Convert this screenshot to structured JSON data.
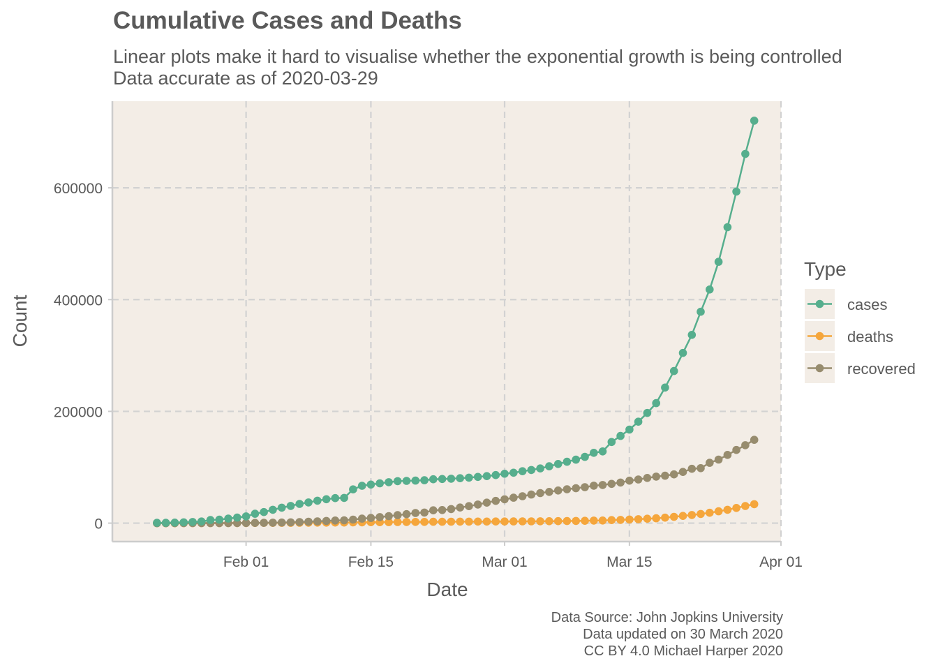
{
  "header": {
    "title": "Cumulative Cases and Deaths",
    "subtitle_line1": "Linear plots make it hard to visualise whether the exponential growth is being controlled",
    "subtitle_line2": "Data accurate as of 2020-03-29"
  },
  "caption": {
    "line1": "Data Source: John Jopkins University",
    "line2": "Data updated on 30 March 2020",
    "line3": "CC BY 4.0 Michael Harper 2020"
  },
  "colors": {
    "panel_background": "#f3ede6",
    "grid": "#d2d2d2",
    "axis": "#cccccc",
    "cases": "#56ae8d",
    "deaths": "#f5a63c",
    "recovered": "#978c6e"
  },
  "chart_data": {
    "type": "line",
    "title": "Cumulative Cases and Deaths",
    "subtitle": "Linear plots make it hard to visualise whether the exponential growth is being controlled\nData accurate as of 2020-03-29",
    "xlabel": "Date",
    "ylabel": "Count",
    "x_start": "2020-01-22",
    "x_end": "2020-03-29",
    "xlim": [
      "2020-01-17",
      "2020-04-01"
    ],
    "ylim": [
      -33000,
      755000
    ],
    "x_ticks": [
      {
        "date": "2020-02-01",
        "label": "Feb 01"
      },
      {
        "date": "2020-02-15",
        "label": "Feb 15"
      },
      {
        "date": "2020-03-01",
        "label": "Mar 01"
      },
      {
        "date": "2020-03-15",
        "label": "Mar 15"
      },
      {
        "date": "2020-04-01",
        "label": "Apr 01"
      }
    ],
    "y_ticks": [
      0,
      200000,
      400000,
      600000
    ],
    "y_tick_labels": [
      "0",
      "200000",
      "400000",
      "600000"
    ],
    "grid": true,
    "legend": {
      "title": "Type",
      "placement": "right"
    },
    "series": [
      {
        "name": "cases",
        "values": [
          555,
          654,
          941,
          1434,
          2118,
          2927,
          5578,
          6166,
          8234,
          9927,
          12038,
          16787,
          19881,
          23892,
          27635,
          30817,
          34391,
          37120,
          40150,
          42762,
          44802,
          45221,
          60368,
          66885,
          69030,
          71224,
          73258,
          75136,
          75639,
          76197,
          76823,
          78579,
          78965,
          79568,
          80413,
          81395,
          82754,
          84120,
          86011,
          88369,
          90306,
          92840,
          95120,
          97886,
          101801,
          105847,
          109821,
          113590,
          118620,
          125875,
          128352,
          145205,
          156101,
          167454,
          181574,
          197102,
          214821,
          242570,
          272208,
          304507,
          336953,
          378235,
          418045,
          467653,
          529591,
          593291,
          660706,
          720117
        ]
      },
      {
        "name": "deaths",
        "values": [
          17,
          18,
          26,
          42,
          56,
          82,
          131,
          133,
          171,
          213,
          259,
          362,
          426,
          492,
          564,
          634,
          719,
          806,
          906,
          1013,
          1113,
          1118,
          1371,
          1523,
          1666,
          1770,
          1868,
          2007,
          2122,
          2247,
          2251,
          2458,
          2469,
          2629,
          2708,
          2770,
          2814,
          2872,
          2941,
          2996,
          3085,
          3160,
          3254,
          3348,
          3460,
          3558,
          3802,
          3988,
          4262,
          4615,
          4720,
          5404,
          5819,
          6440,
          7126,
          7905,
          8733,
          9867,
          11299,
          13015,
          14623,
          16497,
          18615,
          21181,
          23970,
          27198,
          30652,
          33925
        ]
      },
      {
        "name": "recovered",
        "values": [
          28,
          30,
          36,
          39,
          52,
          61,
          107,
          126,
          143,
          222,
          284,
          472,
          623,
          852,
          1124,
          1487,
          2011,
          2616,
          3244,
          3946,
          4683,
          5150,
          6295,
          8058,
          9395,
          10865,
          12583,
          14352,
          16121,
          18177,
          18890,
          22886,
          23394,
          25227,
          27905,
          30384,
          33277,
          36711,
          39782,
          42716,
          45602,
          48228,
          51170,
          53796,
          55865,
          58358,
          60694,
          62494,
          64404,
          67003,
          68324,
          70251,
          72624,
          76034,
          78088,
          80840,
          83207,
          84854,
          87256,
          91676,
          97243,
          98334,
          107990,
          113787,
          122150,
          130915,
          139415,
          149082
        ]
      }
    ]
  }
}
